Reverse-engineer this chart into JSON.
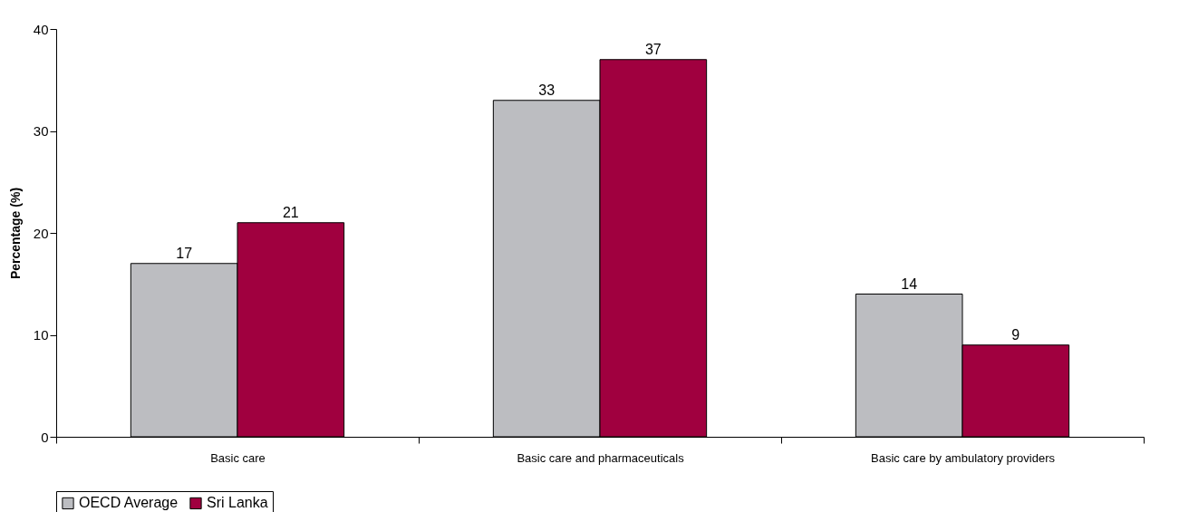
{
  "chart_data": {
    "type": "bar",
    "ylabel": "Percentage (%)",
    "categories": [
      "Basic care",
      "Basic care and pharmaceuticals",
      "Basic care by ambulatory providers"
    ],
    "series": [
      {
        "name": "OECD Average",
        "color": "#bcbdc1",
        "values": [
          17,
          33,
          14
        ]
      },
      {
        "name": "Sri Lanka",
        "color": "#a0003f",
        "values": [
          21,
          37,
          9
        ]
      }
    ],
    "ylim": [
      0,
      40
    ],
    "yticks": [
      0,
      10,
      20,
      30,
      40
    ],
    "grid": false,
    "legend": "bottom",
    "data_labels": true
  }
}
